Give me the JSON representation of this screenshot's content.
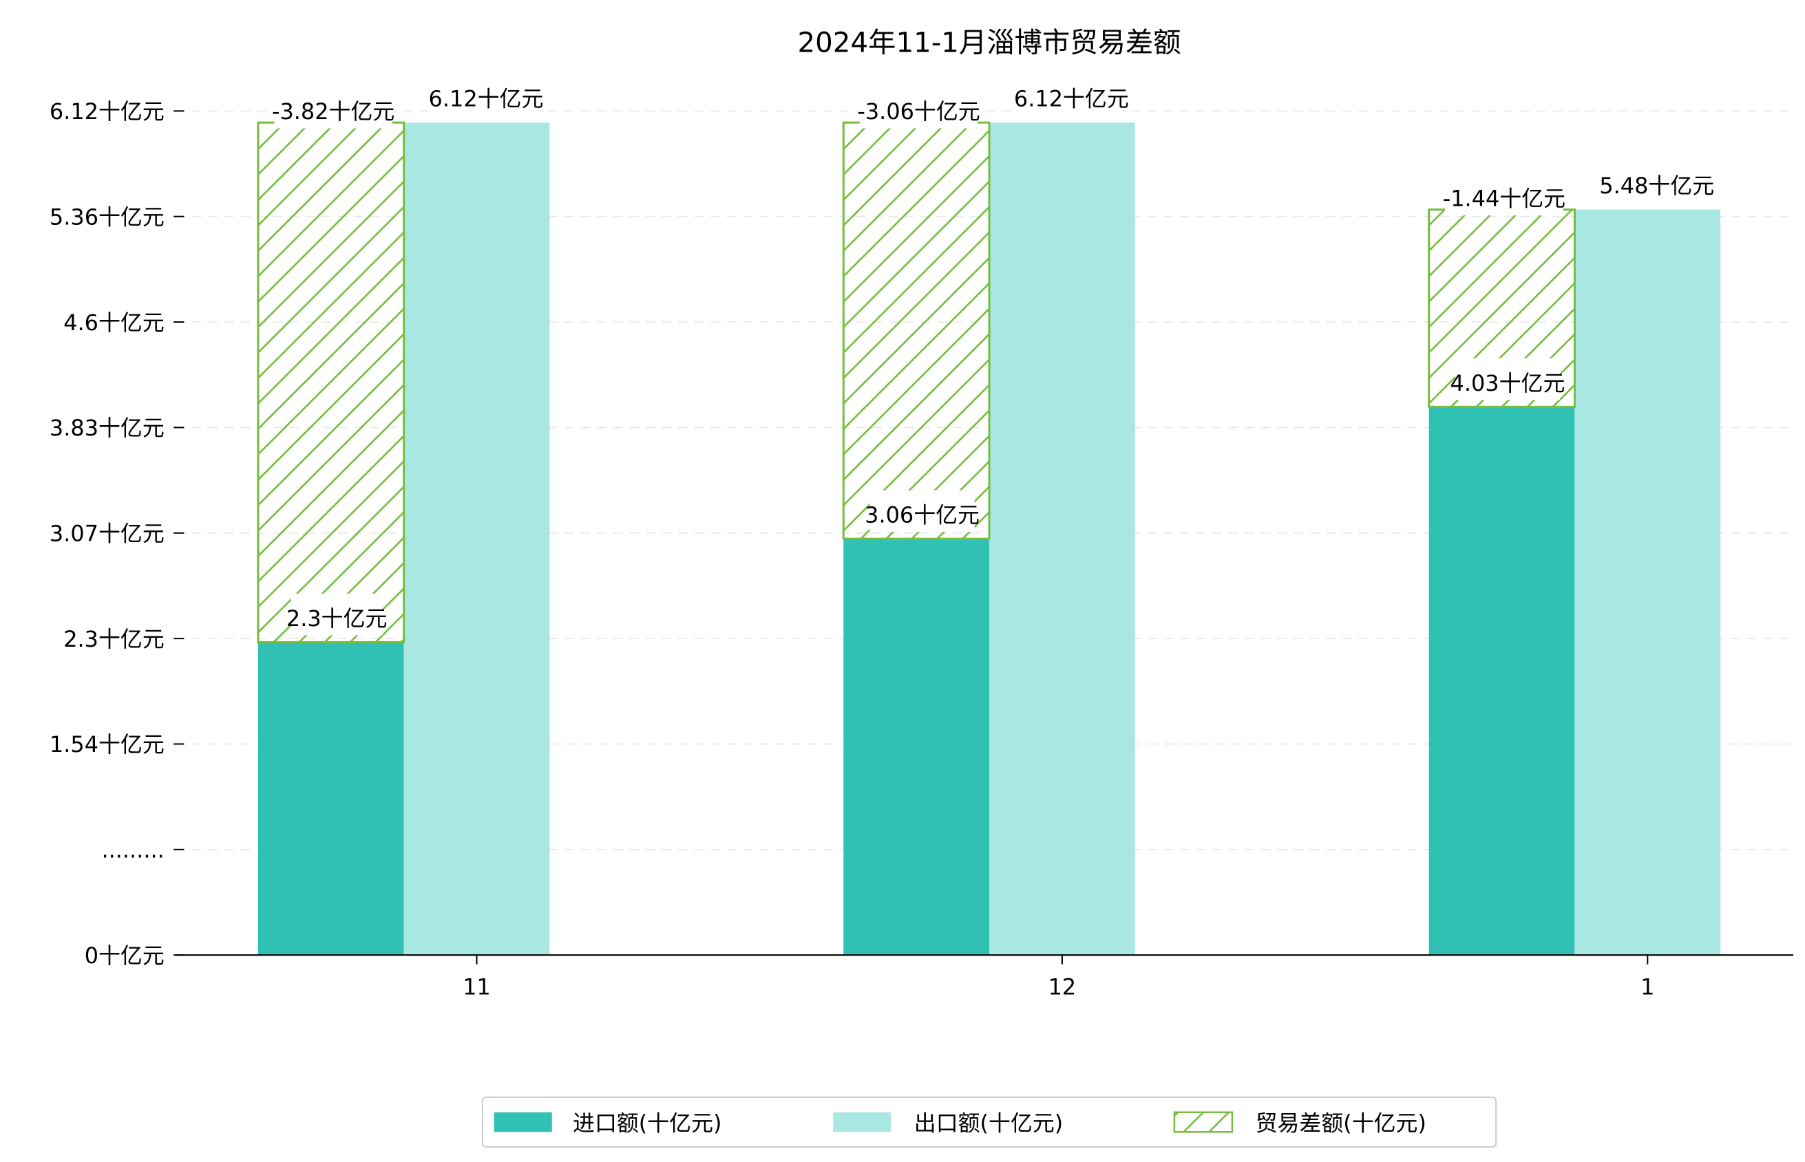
{
  "chart_data": {
    "type": "bar",
    "title": "2024年11-1月淄博市贸易差额",
    "categories": [
      "11",
      "12",
      "1"
    ],
    "unit": "十亿元",
    "series": [
      {
        "name": "进口额(十亿元)",
        "values": [
          2.3,
          3.06,
          4.03
        ],
        "color": "#31c0b4"
      },
      {
        "name": "出口额(十亿元)",
        "values": [
          6.12,
          6.12,
          5.48
        ],
        "color": "#a9e8e2"
      },
      {
        "name": "贸易差额(十亿元)",
        "values": [
          -3.82,
          -3.06,
          -1.44
        ],
        "color": "#76bd3f",
        "hatch": true
      }
    ],
    "yticks": [
      "0十亿元",
      ".........",
      "1.54十亿元",
      "2.3十亿元",
      "3.07十亿元",
      "3.83十亿元",
      "4.6十亿元",
      "5.36十亿元",
      "6.12十亿元"
    ],
    "ylim": [
      0,
      6.12
    ],
    "grid": true,
    "legend_position": "bottom-center"
  }
}
